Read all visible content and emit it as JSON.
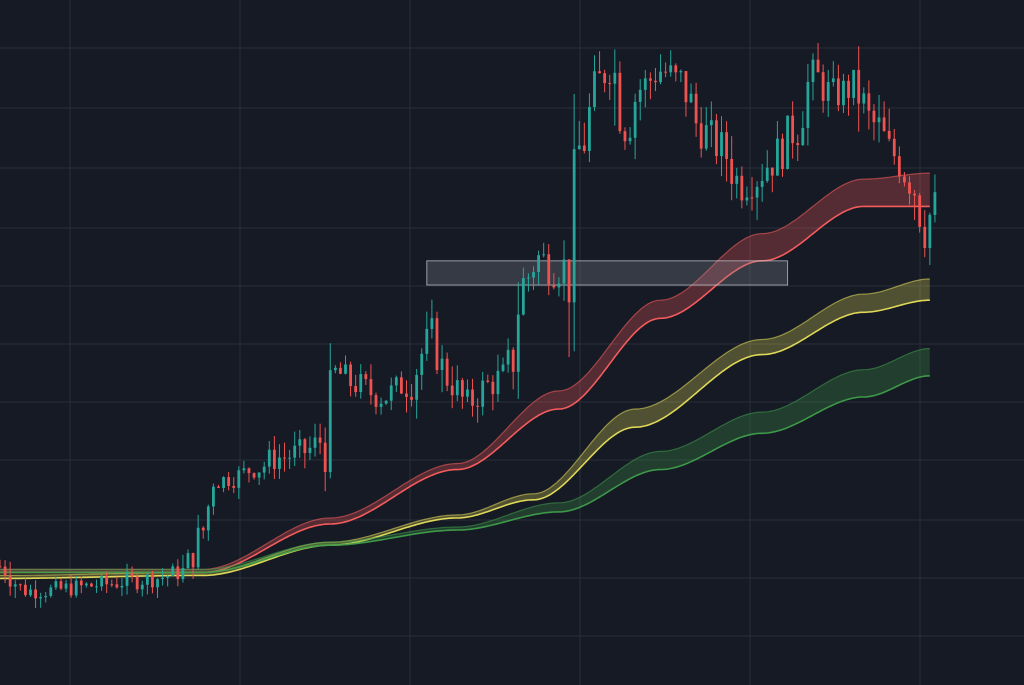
{
  "colors": {
    "background": "#161a25",
    "grid": "#2a2e39",
    "candle_up": "#26a69a",
    "candle_down": "#ef5350",
    "ma_short": "#ff5f5f",
    "ma_mid": "#e8e05a",
    "ma_long": "#3f9e4a",
    "zone_fill": "#8a8f9c"
  },
  "chart_data": {
    "type": "candlestick",
    "title": "",
    "xlabel": "",
    "ylabel": "",
    "grid": true,
    "legend": "none",
    "xlim": [
      0,
      185
    ],
    "ylim": [
      0,
      100
    ],
    "candles_anchor_closes": [
      [
        0,
        13
      ],
      [
        5,
        9
      ],
      [
        10,
        9
      ],
      [
        15,
        9.5
      ],
      [
        20,
        10
      ],
      [
        25,
        10.5
      ],
      [
        30,
        11
      ],
      [
        36,
        12
      ],
      [
        40,
        19
      ],
      [
        42,
        27
      ],
      [
        45,
        27.5
      ],
      [
        50,
        29
      ],
      [
        55,
        31
      ],
      [
        60,
        32
      ],
      [
        64,
        34
      ],
      [
        66,
        45
      ],
      [
        70,
        43
      ],
      [
        75,
        41
      ],
      [
        80,
        43
      ],
      [
        85,
        51
      ],
      [
        88,
        44
      ],
      [
        92,
        40
      ],
      [
        96,
        43
      ],
      [
        100,
        45
      ],
      [
        103,
        60
      ],
      [
        106,
        64
      ],
      [
        109,
        62
      ],
      [
        112,
        63
      ],
      [
        114,
        82
      ],
      [
        118,
        93
      ],
      [
        120,
        97
      ],
      [
        123,
        86
      ],
      [
        126,
        92
      ],
      [
        130,
        95
      ],
      [
        134,
        93
      ],
      [
        138,
        85
      ],
      [
        142,
        82
      ],
      [
        146,
        76
      ],
      [
        148,
        77
      ],
      [
        152,
        80
      ],
      [
        156,
        85
      ],
      [
        160,
        94
      ],
      [
        164,
        91
      ],
      [
        168,
        92
      ],
      [
        172,
        86
      ],
      [
        176,
        81
      ],
      [
        180,
        76
      ],
      [
        182,
        69
      ],
      [
        184,
        73
      ]
    ],
    "zone": {
      "y_range": [
        59.5,
        63.5
      ],
      "x_range": [
        84,
        155
      ]
    },
    "bands": [
      {
        "color_key": "ma_short",
        "upper": [
          [
            0,
            12.5
          ],
          [
            40,
            12.5
          ],
          [
            65,
            21
          ],
          [
            90,
            30
          ],
          [
            110,
            42
          ],
          [
            130,
            57
          ],
          [
            150,
            68
          ],
          [
            170,
            77
          ],
          [
            183,
            78
          ]
        ],
        "lower": [
          [
            0,
            12
          ],
          [
            40,
            12
          ],
          [
            65,
            20
          ],
          [
            90,
            29
          ],
          [
            110,
            39
          ],
          [
            130,
            54
          ],
          [
            150,
            63.5
          ],
          [
            170,
            72.5
          ],
          [
            183,
            72.5
          ]
        ]
      },
      {
        "color_key": "ma_mid",
        "upper": [
          [
            0,
            11.5
          ],
          [
            40,
            12
          ],
          [
            65,
            17
          ],
          [
            90,
            21.5
          ],
          [
            105,
            25
          ],
          [
            125,
            39
          ],
          [
            150,
            50.5
          ],
          [
            170,
            58
          ],
          [
            183,
            60.5
          ]
        ],
        "lower": [
          [
            0,
            11
          ],
          [
            40,
            11.5
          ],
          [
            65,
            16.5
          ],
          [
            90,
            21
          ],
          [
            105,
            24
          ],
          [
            125,
            36
          ],
          [
            150,
            48
          ],
          [
            170,
            55
          ],
          [
            183,
            57
          ]
        ]
      },
      {
        "color_key": "ma_long",
        "upper": [
          [
            0,
            12.5
          ],
          [
            40,
            12.5
          ],
          [
            65,
            17
          ],
          [
            90,
            19.5
          ],
          [
            110,
            23.5
          ],
          [
            130,
            32
          ],
          [
            150,
            38.5
          ],
          [
            170,
            45.5
          ],
          [
            183,
            49
          ]
        ],
        "lower": [
          [
            0,
            12
          ],
          [
            40,
            12
          ],
          [
            65,
            16.5
          ],
          [
            90,
            19
          ],
          [
            110,
            22
          ],
          [
            130,
            29
          ],
          [
            150,
            35
          ],
          [
            170,
            41
          ],
          [
            183,
            44.5
          ]
        ]
      }
    ]
  }
}
